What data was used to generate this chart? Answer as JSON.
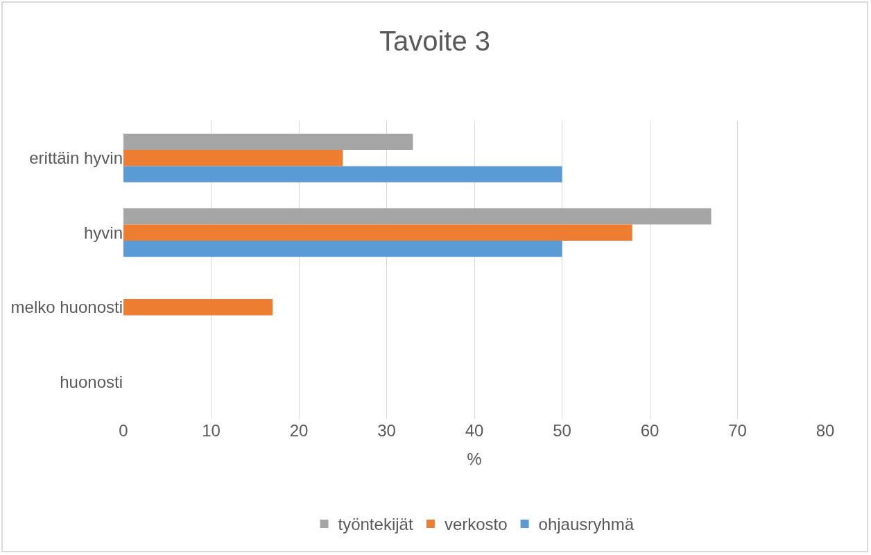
{
  "chart_data": {
    "type": "bar",
    "orientation": "horizontal",
    "title": "Tavoite 3",
    "xlabel": "%",
    "categories": [
      "erittäin hyvin",
      "hyvin",
      "melko huonosti",
      "huonosti"
    ],
    "series": [
      {
        "name": "työntekijät",
        "color": "#a5a5a5",
        "values": [
          33,
          67,
          0,
          0
        ]
      },
      {
        "name": "verkosto",
        "color": "#ed7d31",
        "values": [
          25,
          58,
          17,
          0
        ]
      },
      {
        "name": "ohjausryhmä",
        "color": "#5b9bd5",
        "values": [
          50,
          50,
          0,
          0
        ]
      }
    ],
    "xlim": [
      0,
      80
    ],
    "xticks": [
      0,
      10,
      20,
      30,
      40,
      50,
      60,
      70,
      80
    ],
    "grid": "x",
    "legend": "bottom"
  }
}
